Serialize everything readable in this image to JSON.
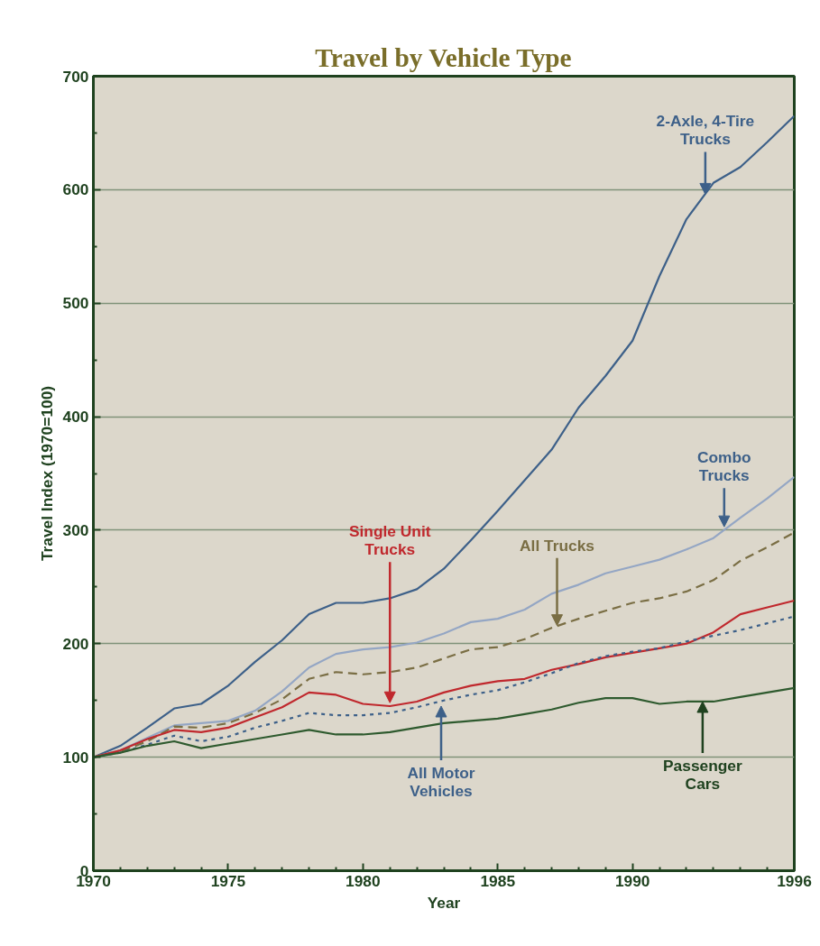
{
  "chart_data": {
    "type": "line",
    "title": "Travel by Vehicle Type",
    "xlabel": "Year",
    "ylabel": "Travel Index (1970=100)",
    "x": [
      1970,
      1971,
      1972,
      1973,
      1974,
      1975,
      1976,
      1977,
      1978,
      1979,
      1980,
      1981,
      1982,
      1983,
      1984,
      1985,
      1986,
      1987,
      1988,
      1989,
      1990,
      1991,
      1992,
      1993,
      1994,
      1995,
      1996
    ],
    "series": [
      {
        "color": "#3d6089",
        "line_style": "solid",
        "values": [
          100,
          110,
          126,
          143,
          147,
          163,
          184,
          203,
          226,
          236,
          236,
          240,
          248,
          266,
          291,
          317,
          344,
          371,
          408,
          436,
          467,
          524,
          574,
          606,
          620,
          642,
          665
        ]
      },
      {
        "color": "#94a6c4",
        "line_style": "solid",
        "values": [
          100,
          106,
          117,
          128,
          130,
          132,
          141,
          158,
          179,
          191,
          195,
          197,
          201,
          209,
          219,
          222,
          230,
          244,
          252,
          262,
          268,
          274,
          283,
          293,
          311,
          328,
          347
        ]
      },
      {
        "color": "#7a6e44",
        "line_style": "dashed",
        "values": [
          100,
          105,
          114,
          127,
          126,
          130,
          139,
          151,
          169,
          175,
          173,
          175,
          179,
          187,
          195,
          197,
          204,
          214,
          222,
          229,
          236,
          240,
          246,
          256,
          273,
          285,
          298
        ]
      },
      {
        "color": "#c0282d",
        "line_style": "solid",
        "values": [
          100,
          106,
          116,
          124,
          122,
          126,
          135,
          144,
          157,
          155,
          147,
          145,
          149,
          157,
          163,
          167,
          169,
          177,
          182,
          188,
          192,
          196,
          200,
          210,
          226,
          232,
          238
        ]
      },
      {
        "color": "#3d6089",
        "line_style": "dotted",
        "values": [
          100,
          104,
          111,
          119,
          114,
          118,
          126,
          132,
          139,
          137,
          137,
          139,
          144,
          150,
          155,
          159,
          166,
          174,
          183,
          189,
          193,
          196,
          202,
          207,
          212,
          218,
          224
        ]
      },
      {
        "color": "#2e5a2e",
        "line_style": "solid",
        "values": [
          100,
          104,
          110,
          114,
          108,
          112,
          116,
          120,
          124,
          120,
          120,
          122,
          126,
          130,
          132,
          134,
          138,
          142,
          148,
          152,
          152,
          147,
          149,
          149,
          153,
          157,
          161
        ]
      }
    ],
    "annotations": [
      {
        "text": "2-Axle, 4-Tire Trucks",
        "x": 1992.7,
        "y": 596
      },
      {
        "text": "Combo Trucks",
        "x": 1993.4,
        "y": 303
      },
      {
        "text": "All Trucks",
        "x": 1987.2,
        "y": 216
      },
      {
        "text": "Single Unit Trucks",
        "x": 1981.0,
        "y": 148
      },
      {
        "text": "All Motor Vehicles",
        "x": 1982.9,
        "y": 145
      },
      {
        "text": "Passenger Cars",
        "x": 1992.6,
        "y": 149
      }
    ],
    "xlim": [
      1970,
      1996
    ],
    "ylim": [
      0,
      700
    ],
    "xticks": [
      1970,
      {
        "value": 1971,
        "label": null
      },
      {
        "value": 1972,
        "label": null
      },
      {
        "value": 1973,
        "label": null
      },
      {
        "value": 1974,
        "label": null
      },
      1975,
      {
        "value": 1976,
        "label": null
      },
      {
        "value": 1977,
        "label": null
      },
      {
        "value": 1978,
        "label": null
      },
      {
        "value": 1979,
        "label": null
      },
      1980,
      {
        "value": 1981,
        "label": null
      },
      {
        "value": 1982,
        "label": null
      },
      {
        "value": 1983,
        "label": null
      },
      {
        "value": 1984,
        "label": null
      },
      1985,
      {
        "value": 1986,
        "label": null
      },
      {
        "value": 1987,
        "label": null
      },
      {
        "value": 1988,
        "label": null
      },
      {
        "value": 1989,
        "label": null
      },
      1990,
      {
        "value": 1991,
        "label": null
      },
      {
        "value": 1992,
        "label": null
      },
      {
        "value": 1993,
        "label": null
      },
      {
        "value": 1994,
        "label": null
      },
      {
        "value": 1995,
        "label": null
      },
      1996
    ],
    "yticks": [
      0,
      {
        "value": 50,
        "label": null
      },
      100,
      {
        "value": 150,
        "label": null
      },
      200,
      {
        "value": 250,
        "label": null
      },
      300,
      {
        "value": 350,
        "label": null
      },
      400,
      {
        "value": 450,
        "label": null
      },
      500,
      {
        "value": 550,
        "label": null
      },
      600,
      {
        "value": 650,
        "label": null
      },
      700
    ],
    "grid": "y",
    "marker": "none"
  }
}
